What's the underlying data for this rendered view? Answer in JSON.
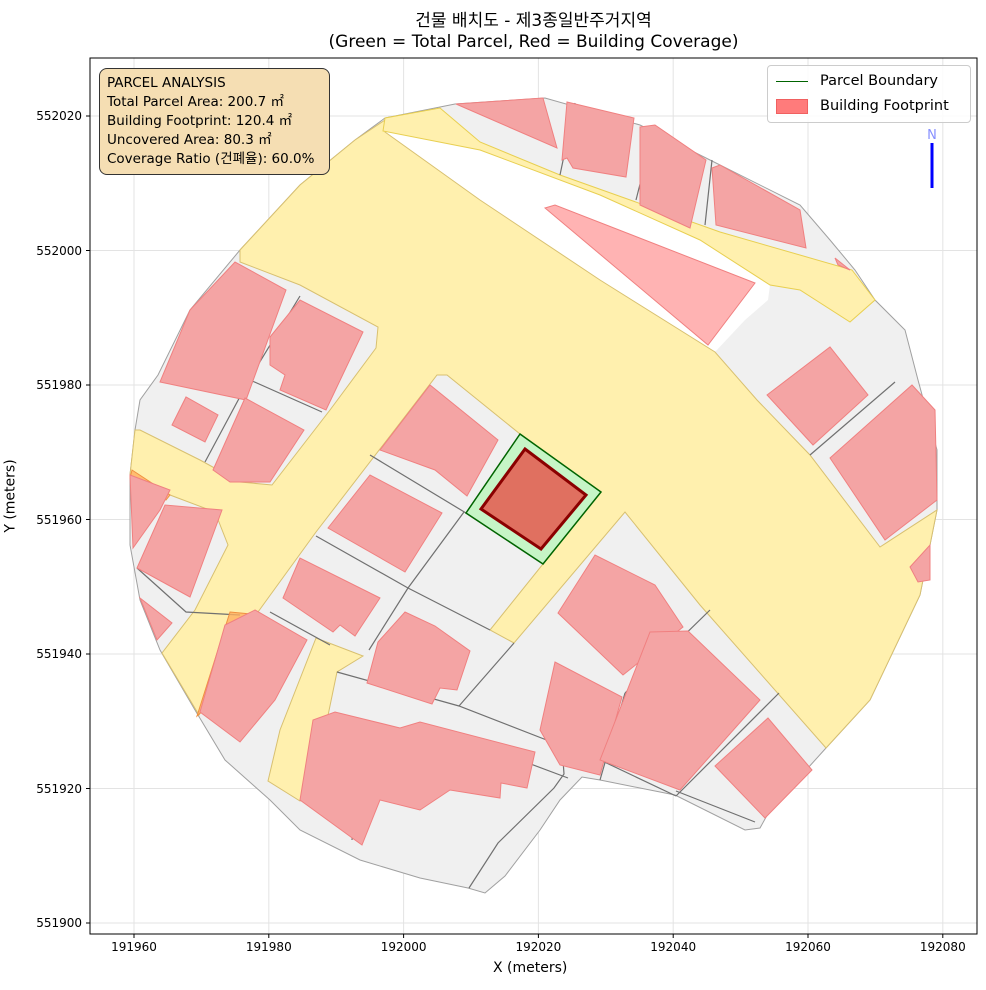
{
  "title": {
    "line1": "건물 배치도 - 제3종일반주거지역",
    "line2": "(Green = Total Parcel, Red = Building Coverage)"
  },
  "info_box": {
    "heading": "PARCEL ANALYSIS",
    "lines": [
      "Total Parcel Area: 200.7 ㎡",
      "Building Footprint: 120.4 ㎡",
      "Uncovered Area: 80.3 ㎡",
      "Coverage Ratio (건폐율): 60.0%"
    ]
  },
  "legend": {
    "items": [
      {
        "label": "Parcel Boundary",
        "color": "#006400"
      },
      {
        "label": "Building Footprint",
        "color": "#ff7b7b"
      }
    ]
  },
  "north_arrow": {
    "label": "N",
    "color": "#0000ff"
  },
  "colors": {
    "road": "#fff0ae",
    "parcel_fill": "#c6f5c6",
    "parcel_edge": "#006400",
    "building_fill": "#e07060",
    "building_edge": "#8b0000",
    "neighbor_building": "#f4a4a4",
    "lot": "#f0f0f0"
  },
  "chart_data": {
    "type": "map",
    "xlabel": "X (meters)",
    "ylabel": "Y (meters)",
    "xlim": [
      191953.5,
      192085.5
    ],
    "ylim": [
      551898.3,
      552028.5
    ],
    "x_ticks": [
      191960,
      191980,
      192000,
      192020,
      192040,
      192060,
      192080
    ],
    "y_ticks": [
      551900,
      551920,
      551940,
      551960,
      551980,
      552000,
      552020
    ],
    "grid": true,
    "legend_position": "top-right"
  }
}
